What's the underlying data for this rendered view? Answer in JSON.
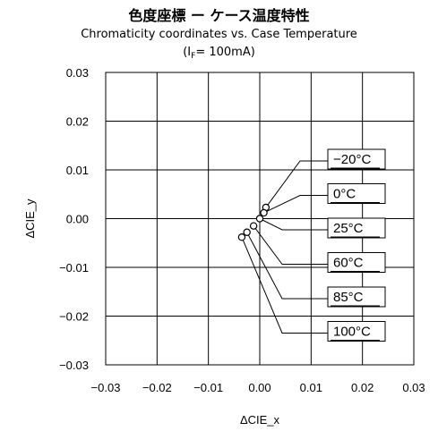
{
  "header": {
    "title_jp": "色度座標 ー ケース温度特性",
    "title_en": "Chromaticity coordinates vs. Case Temperature",
    "condition_prefix": "(I",
    "condition_sub": "F",
    "condition_suffix": "= 100mA)"
  },
  "chart_data": {
    "type": "scatter",
    "xlabel": "ΔCIE_x",
    "ylabel": "ΔCIE_y",
    "xlim": [
      -0.03,
      0.03
    ],
    "ylim": [
      -0.03,
      0.03
    ],
    "x_ticks": [
      "−0.03",
      "−0.02",
      "−0.01",
      "0.00",
      "0.01",
      "0.02",
      "0.03"
    ],
    "y_ticks": [
      "0.03",
      "0.02",
      "0.01",
      "0.00",
      "−0.01",
      "−0.02",
      "−0.03"
    ],
    "grid": true,
    "points": [
      {
        "label": "−20°C",
        "x": 0.0012,
        "y": 0.0023
      },
      {
        "label": "0°C",
        "x": 0.0008,
        "y": 0.0012
      },
      {
        "label": "25°C",
        "x": 0.0,
        "y": 0.0
      },
      {
        "label": "60°C",
        "x": -0.0012,
        "y": -0.0015
      },
      {
        "label": "85°C",
        "x": -0.0025,
        "y": -0.0028
      },
      {
        "label": "100°C",
        "x": -0.0035,
        "y": -0.0038
      }
    ]
  }
}
